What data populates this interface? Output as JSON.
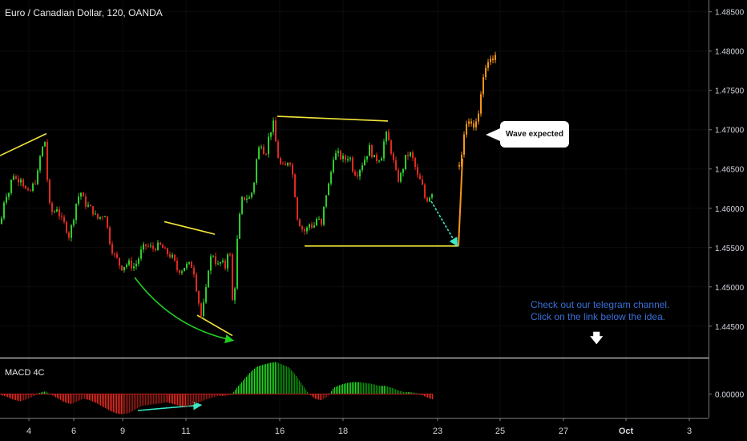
{
  "chart_title": "Euro / Canadian Dollar, 120, OANDA",
  "macd_title": "MACD 4C",
  "callout_text": "Wave expected",
  "note_lines": [
    "Check out our telegram channel.",
    "Click on the link below the idea."
  ],
  "colors": {
    "background": "#000000",
    "up": "#2ecc2e",
    "down": "#e0291f",
    "projection": "#f7931a",
    "trendline": "#f2e53a",
    "arrow": "#3ae8c4",
    "curve": "#22cc22",
    "note": "#3a6fd8"
  },
  "chart_data": {
    "type": "candlestick",
    "price_axis": {
      "ticks": [
        "1.48500",
        "1.48000",
        "1.47500",
        "1.47000",
        "1.46500",
        "1.46000",
        "1.45500",
        "1.45000",
        "1.44500"
      ],
      "range": [
        1.441,
        1.4865
      ]
    },
    "time_axis": {
      "ticks": [
        "4",
        "6",
        "9",
        "11",
        "16",
        "18",
        "23",
        "25",
        "27",
        "Oct",
        "3"
      ]
    },
    "macd_axis": {
      "ticks": [
        "0.00000"
      ],
      "range": [
        -0.0025,
        0.0038
      ]
    },
    "candle_path": [
      [
        0,
        1.458
      ],
      [
        5,
        1.4617
      ],
      [
        10,
        1.462
      ],
      [
        15,
        1.4645
      ],
      [
        20,
        1.4635
      ],
      [
        25,
        1.464
      ],
      [
        30,
        1.4625
      ],
      [
        35,
        1.4617
      ],
      [
        40,
        1.4629
      ],
      [
        45,
        1.4638
      ],
      [
        50,
        1.4672
      ],
      [
        55,
        1.4685
      ],
      [
        60,
        1.4605
      ],
      [
        65,
        1.4593
      ],
      [
        70,
        1.4601
      ],
      [
        75,
        1.4586
      ],
      [
        80,
        1.4579
      ],
      [
        85,
        1.4565
      ],
      [
        90,
        1.4584
      ],
      [
        95,
        1.4612
      ],
      [
        100,
        1.462
      ],
      [
        105,
        1.4606
      ],
      [
        110,
        1.4602
      ],
      [
        115,
        1.4596
      ],
      [
        120,
        1.4586
      ],
      [
        125,
        1.459
      ],
      [
        130,
        1.4593
      ],
      [
        135,
        1.4562
      ],
      [
        140,
        1.4543
      ],
      [
        145,
        1.4535
      ],
      [
        150,
        1.4524
      ],
      [
        155,
        1.4528
      ],
      [
        160,
        1.453
      ],
      [
        165,
        1.4525
      ],
      [
        170,
        1.4531
      ],
      [
        175,
        1.4545
      ],
      [
        180,
        1.4553
      ],
      [
        185,
        1.4551
      ],
      [
        190,
        1.4549
      ],
      [
        195,
        1.4552
      ],
      [
        200,
        1.4552
      ],
      [
        205,
        1.4545
      ],
      [
        210,
        1.4541
      ],
      [
        215,
        1.4536
      ],
      [
        220,
        1.4522
      ],
      [
        225,
        1.4521
      ],
      [
        230,
        1.4527
      ],
      [
        235,
        1.4528
      ],
      [
        240,
        1.4526
      ],
      [
        245,
        1.4492
      ],
      [
        250,
        1.4463
      ],
      [
        255,
        1.4486
      ],
      [
        260,
        1.4534
      ],
      [
        265,
        1.4541
      ],
      [
        270,
        1.4526
      ],
      [
        275,
        1.4532
      ],
      [
        280,
        1.4525
      ],
      [
        285,
        1.4558
      ],
      [
        290,
        1.4463
      ],
      [
        295,
        1.4559
      ],
      [
        300,
        1.461
      ],
      [
        305,
        1.4614
      ],
      [
        310,
        1.4613
      ],
      [
        315,
        1.4625
      ],
      [
        320,
        1.4671
      ],
      [
        325,
        1.4683
      ],
      [
        330,
        1.4667
      ],
      [
        335,
        1.4695
      ],
      [
        340,
        1.4707
      ],
      [
        345,
        1.4669
      ],
      [
        350,
        1.4652
      ],
      [
        355,
        1.4653
      ],
      [
        360,
        1.4665
      ],
      [
        365,
        1.4637
      ],
      [
        370,
        1.4589
      ],
      [
        375,
        1.4575
      ],
      [
        380,
        1.457
      ],
      [
        385,
        1.458
      ],
      [
        390,
        1.4576
      ],
      [
        395,
        1.4589
      ],
      [
        400,
        1.4577
      ],
      [
        405,
        1.4615
      ],
      [
        410,
        1.4633
      ],
      [
        415,
        1.4666
      ],
      [
        420,
        1.467
      ],
      [
        425,
        1.4664
      ],
      [
        430,
        1.4662
      ],
      [
        435,
        1.4668
      ],
      [
        440,
        1.4646
      ],
      [
        445,
        1.4645
      ],
      [
        450,
        1.4655
      ],
      [
        455,
        1.4665
      ],
      [
        460,
        1.4677
      ],
      [
        465,
        1.4664
      ],
      [
        470,
        1.4662
      ],
      [
        475,
        1.4667
      ],
      [
        480,
        1.4696
      ],
      [
        485,
        1.4682
      ],
      [
        490,
        1.4659
      ],
      [
        495,
        1.4635
      ],
      [
        500,
        1.4644
      ],
      [
        505,
        1.4664
      ],
      [
        510,
        1.4671
      ],
      [
        515,
        1.466
      ],
      [
        520,
        1.464
      ],
      [
        525,
        1.4632
      ],
      [
        530,
        1.4609
      ],
      [
        535,
        1.4616
      ],
      [
        540,
        1.4624
      ]
    ],
    "projection": [
      [
        572,
        1.4655
      ],
      [
        577,
        1.4685
      ],
      [
        582,
        1.4718
      ],
      [
        587,
        1.4712
      ],
      [
        592,
        1.4705
      ],
      [
        597,
        1.4727
      ],
      [
        602,
        1.4772
      ],
      [
        607,
        1.4781
      ],
      [
        612,
        1.4786
      ],
      [
        617,
        1.4795
      ]
    ],
    "annotations": {
      "trendlines": [
        {
          "points": [
            [
              0,
              1.4667
            ],
            [
              58,
              1.4695
            ]
          ]
        },
        {
          "points": [
            [
              205,
              1.4583
            ],
            [
              268,
              1.4567
            ]
          ]
        },
        {
          "points": [
            [
              246,
              1.4464
            ],
            [
              290,
              1.4438
            ]
          ]
        },
        {
          "points": [
            [
              346,
              1.4717
            ],
            [
              484,
              1.4711
            ]
          ]
        },
        {
          "points": [
            [
              380,
              1.4552
            ],
            [
              572,
              1.4552
            ]
          ]
        }
      ],
      "price_arrow": [
        [
          538,
          1.4609
        ],
        [
          570,
          1.4553
        ]
      ],
      "rise_line": [
        [
          572,
          1.4552
        ],
        [
          577,
          1.4663
        ]
      ],
      "curve": [
        [
          168,
          1.4512
        ],
        [
          215,
          1.4448
        ],
        [
          290,
          1.4432
        ]
      ],
      "macd_arrow": [
        [
          172,
          -0.0018
        ],
        [
          250,
          -0.0012
        ]
      ]
    },
    "macd_histogram": [
      [
        0,
        -0.0001
      ],
      [
        8,
        -0.0003
      ],
      [
        16,
        -0.0006
      ],
      [
        24,
        -0.0008
      ],
      [
        32,
        -0.0006
      ],
      [
        40,
        -0.0003
      ],
      [
        48,
        0.0001
      ],
      [
        56,
        0.0003
      ],
      [
        64,
        -0.0001
      ],
      [
        72,
        -0.0005
      ],
      [
        80,
        -0.0009
      ],
      [
        88,
        -0.0011
      ],
      [
        96,
        -0.0008
      ],
      [
        104,
        -0.0005
      ],
      [
        112,
        -0.0007
      ],
      [
        120,
        -0.001
      ],
      [
        128,
        -0.0014
      ],
      [
        136,
        -0.0018
      ],
      [
        144,
        -0.0021
      ],
      [
        152,
        -0.0022
      ],
      [
        160,
        -0.0021
      ],
      [
        168,
        -0.0017
      ],
      [
        176,
        -0.0013
      ],
      [
        184,
        -0.0012
      ],
      [
        192,
        -0.0011
      ],
      [
        200,
        -0.001
      ],
      [
        208,
        -0.0009
      ],
      [
        216,
        -0.0011
      ],
      [
        224,
        -0.0013
      ],
      [
        232,
        -0.0014
      ],
      [
        240,
        -0.0012
      ],
      [
        248,
        -0.0009
      ],
      [
        256,
        -0.0006
      ],
      [
        264,
        -0.0004
      ],
      [
        272,
        -0.0002
      ],
      [
        280,
        -0.0002
      ],
      [
        288,
        -0.0001
      ],
      [
        296,
        0.0008
      ],
      [
        304,
        0.0016
      ],
      [
        312,
        0.0024
      ],
      [
        320,
        0.003
      ],
      [
        328,
        0.0032
      ],
      [
        336,
        0.0034
      ],
      [
        344,
        0.0035
      ],
      [
        352,
        0.0032
      ],
      [
        360,
        0.0029
      ],
      [
        368,
        0.0021
      ],
      [
        376,
        0.0011
      ],
      [
        384,
        0.0001
      ],
      [
        392,
        -0.0005
      ],
      [
        400,
        -0.0007
      ],
      [
        408,
        -0.0003
      ],
      [
        416,
        0.0007
      ],
      [
        424,
        0.001
      ],
      [
        432,
        0.0012
      ],
      [
        440,
        0.0013
      ],
      [
        448,
        0.0013
      ],
      [
        456,
        0.0012
      ],
      [
        464,
        0.0011
      ],
      [
        472,
        0.0009
      ],
      [
        480,
        0.0009
      ],
      [
        488,
        0.0007
      ],
      [
        496,
        0.0004
      ],
      [
        504,
        0.0002
      ],
      [
        512,
        0.0002
      ],
      [
        520,
        0.0001
      ],
      [
        528,
        -0.0002
      ],
      [
        536,
        -0.0005
      ],
      [
        540,
        -0.0006
      ]
    ]
  }
}
